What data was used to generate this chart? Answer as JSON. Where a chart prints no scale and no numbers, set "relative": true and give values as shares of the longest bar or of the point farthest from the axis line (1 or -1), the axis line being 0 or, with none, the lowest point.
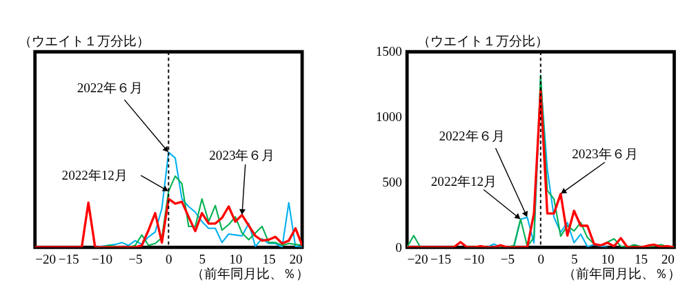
{
  "chart_data": [
    {
      "type": "line",
      "relative": true,
      "ylabel": "（ウエイト１万分比）",
      "xlabel": "（前年同月比、％）",
      "x": [
        -20,
        -19,
        -18,
        -17,
        -16,
        -15,
        -14,
        -13,
        -12,
        -11,
        -10,
        -9,
        -8,
        -7,
        -6,
        -5,
        -4,
        -3,
        -2,
        -1,
        0,
        1,
        2,
        3,
        4,
        5,
        6,
        7,
        8,
        9,
        10,
        11,
        12,
        13,
        14,
        15,
        16,
        17,
        18,
        19,
        20
      ],
      "xlim": [
        -20,
        20
      ],
      "xticks": [
        -20,
        -15,
        -10,
        -5,
        0,
        5,
        10,
        15,
        20
      ],
      "series": [
        {
          "color": "#00b0f0",
          "values": [
            null,
            null,
            null,
            null,
            null,
            null,
            null,
            null,
            null,
            0,
            0.01,
            0.02,
            0.03,
            0.05,
            0.02,
            0.07,
            0.03,
            0.11,
            0.16,
            0.41,
            1,
            0.94,
            0.51,
            0.43,
            0.37,
            0.27,
            0.2,
            0.2,
            0.05,
            0.14,
            0.13,
            0.12,
            0.25,
            0.01,
            0.09,
            0.04,
            0.04,
            0,
            0.47,
            0.01,
            0
          ]
        },
        {
          "color": "#00b050",
          "values": [
            null,
            null,
            null,
            null,
            null,
            null,
            null,
            null,
            null,
            0,
            0,
            0.02,
            0.01,
            0,
            0,
            0.02,
            0.13,
            0.02,
            0.04,
            0.1,
            0.59,
            0.75,
            0.67,
            0.22,
            0.22,
            0.51,
            0.27,
            0.44,
            0.18,
            0.24,
            0.32,
            0.15,
            0.08,
            0.15,
            0.22,
            0.05,
            0.05,
            0.02,
            0.04,
            0.03,
            0.02
          ]
        },
        {
          "color": "#ff0000",
          "values": [
            0,
            0,
            0,
            0,
            0,
            0,
            0,
            0,
            0.47,
            0,
            0,
            0,
            0,
            0,
            0,
            0,
            0.02,
            0.18,
            0.36,
            0.05,
            0.51,
            0.46,
            0.48,
            0.32,
            0.17,
            0.36,
            0.25,
            0.25,
            0.31,
            0.43,
            0.27,
            0.34,
            0.23,
            0.12,
            0.07,
            0.08,
            0.11,
            0.04,
            0.07,
            0.2,
            0.02
          ]
        }
      ],
      "ref_lines": [
        {
          "axis": "x",
          "value": 0,
          "color": "#000000",
          "line_style": "dashed"
        }
      ],
      "annotations": [
        {
          "text": "2022年６月",
          "x": 0,
          "y": 1
        },
        {
          "text": "2022年12月",
          "x": 0,
          "y": 0.59
        },
        {
          "text": "2023年６月",
          "x": 11,
          "y": 0.34
        }
      ],
      "grid": false,
      "marker": "none",
      "line_style": "solid"
    },
    {
      "type": "line",
      "ylabel": "（ウエイト１万分比）",
      "xlabel": "（前年同月比、％）",
      "x": [
        -20,
        -19,
        -18,
        -17,
        -16,
        -15,
        -14,
        -13,
        -12,
        -11,
        -10,
        -9,
        -8,
        -7,
        -6,
        -5,
        -4,
        -3,
        -2,
        -1,
        0,
        1,
        2,
        3,
        4,
        5,
        6,
        7,
        8,
        9,
        10,
        11,
        12,
        13,
        14,
        15,
        16,
        17,
        18,
        19,
        20
      ],
      "xlim": [
        -20,
        20
      ],
      "xticks": [
        -20,
        -15,
        -10,
        -5,
        0,
        5,
        10,
        15,
        20
      ],
      "ylim": [
        0,
        1500
      ],
      "yticks": [
        0,
        500,
        1000,
        1500
      ],
      "series": [
        {
          "color": "#00b0f0",
          "values": [
            null,
            null,
            null,
            null,
            null,
            null,
            null,
            null,
            null,
            null,
            null,
            null,
            0,
            25,
            0,
            null,
            0,
            215,
            230,
            33,
            1280,
            600,
            230,
            115,
            190,
            35,
            100,
            5,
            20,
            8,
            0,
            null,
            null,
            null,
            null,
            null,
            null,
            null,
            null,
            null,
            null
          ]
        },
        {
          "color": "#00b050",
          "values": [
            0,
            90,
            0,
            0,
            0,
            0,
            0,
            0,
            null,
            0,
            0,
            0,
            0,
            0,
            0,
            0,
            15,
            215,
            8,
            75,
            1320,
            435,
            370,
            85,
            165,
            125,
            190,
            75,
            25,
            12,
            40,
            65,
            8,
            0,
            20,
            5,
            5,
            8,
            20,
            5,
            0
          ]
        },
        {
          "color": "#ff0000",
          "values": [
            0,
            0,
            0,
            0,
            0,
            0,
            0,
            0,
            40,
            0,
            0,
            8,
            0,
            0,
            15,
            0,
            0,
            0,
            0,
            260,
            1200,
            260,
            260,
            410,
            90,
            280,
            165,
            165,
            25,
            15,
            35,
            8,
            70,
            0,
            0,
            0,
            12,
            20,
            5,
            8,
            0
          ]
        }
      ],
      "ref_lines": [
        {
          "axis": "x",
          "value": 0,
          "color": "#000000",
          "line_style": "dashed"
        }
      ],
      "annotations": [
        {
          "text": "2022年６月",
          "x": -2,
          "y": 230
        },
        {
          "text": "2022年12月",
          "x": -3,
          "y": 215
        },
        {
          "text": "2023年６月",
          "x": 3,
          "y": 410
        }
      ],
      "grid": false,
      "marker": "none",
      "line_style": "solid"
    }
  ]
}
